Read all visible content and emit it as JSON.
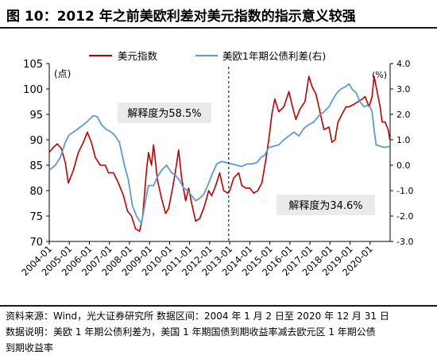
{
  "figure_title": "图 10：2012 年之前美欧利差对美元指数的指示意义较强",
  "notes": {
    "source": "资料来源：Wind，光大证券研究所  数据区间：2004 年 1 月 2 日至 2020 年 12 月 31 日",
    "desc_line1": "数据说明：美欧 1 年期公债利差为，美国 1 年期国债到期收益率减去欧元区 1 年期公债",
    "desc_line2": "到期收益率"
  },
  "colors": {
    "usd_index": "#c00000",
    "spread": "#5b9bd5",
    "annotation_box": "#eaeaea",
    "divider": "#000000"
  },
  "chart_data": {
    "type": "line",
    "title": "",
    "left_axis_unit": "(点)",
    "right_axis_unit": "(%)",
    "ylim_left": [
      70,
      105
    ],
    "yticks_left": [
      70,
      75,
      80,
      85,
      90,
      95,
      100,
      105
    ],
    "ylim_right": [
      -3.0,
      4.0
    ],
    "yticks_right": [
      "-3.0",
      "-2.0",
      "-1.0",
      "0.0",
      "1.0",
      "2.0",
      "3.0",
      "4.0"
    ],
    "x_tick_labels": [
      "2004-01",
      "2005-01",
      "2006-01",
      "2007-01",
      "2008-01",
      "2009-01",
      "2010-01",
      "2011-01",
      "2012-01",
      "2013-01",
      "2014-01",
      "2015-01",
      "2016-01",
      "2017-01",
      "2018-01",
      "2019-01",
      "2020-01"
    ],
    "x_range": [
      2004.0,
      2021.0
    ],
    "divider_x": 2012.95,
    "annotations": [
      {
        "text": "解释度为58.5%"
      },
      {
        "text": "解释度为34.6%"
      }
    ],
    "legend_position": "top",
    "series": [
      {
        "name": "美元指数",
        "axis": "left",
        "points": [
          [
            2004.0,
            87.5
          ],
          [
            2004.2,
            88.5
          ],
          [
            2004.4,
            89.2
          ],
          [
            2004.6,
            88.3
          ],
          [
            2004.8,
            85.5
          ],
          [
            2004.95,
            81.5
          ],
          [
            2005.2,
            84.0
          ],
          [
            2005.45,
            87.5
          ],
          [
            2005.7,
            89.5
          ],
          [
            2005.9,
            91.5
          ],
          [
            2006.1,
            89.5
          ],
          [
            2006.3,
            86.5
          ],
          [
            2006.55,
            85.0
          ],
          [
            2006.8,
            85.0
          ],
          [
            2006.95,
            83.5
          ],
          [
            2007.2,
            83.5
          ],
          [
            2007.45,
            81.5
          ],
          [
            2007.7,
            79.0
          ],
          [
            2007.9,
            76.0
          ],
          [
            2008.1,
            75.0
          ],
          [
            2008.3,
            72.5
          ],
          [
            2008.5,
            72.0
          ],
          [
            2008.65,
            74.5
          ],
          [
            2008.85,
            84.0
          ],
          [
            2008.95,
            87.5
          ],
          [
            2009.1,
            85.0
          ],
          [
            2009.2,
            89.0
          ],
          [
            2009.4,
            82.0
          ],
          [
            2009.6,
            78.5
          ],
          [
            2009.8,
            75.5
          ],
          [
            2009.95,
            76.5
          ],
          [
            2010.15,
            80.5
          ],
          [
            2010.3,
            84.0
          ],
          [
            2010.45,
            88.0
          ],
          [
            2010.6,
            82.5
          ],
          [
            2010.8,
            78.0
          ],
          [
            2010.95,
            80.5
          ],
          [
            2011.1,
            77.5
          ],
          [
            2011.3,
            74.0
          ],
          [
            2011.5,
            74.5
          ],
          [
            2011.7,
            76.5
          ],
          [
            2011.85,
            78.5
          ],
          [
            2011.95,
            80.0
          ],
          [
            2012.1,
            79.0
          ],
          [
            2012.3,
            81.0
          ],
          [
            2012.5,
            83.5
          ],
          [
            2012.7,
            80.0
          ],
          [
            2012.9,
            79.5
          ],
          [
            2013.0,
            80.0
          ],
          [
            2013.2,
            82.5
          ],
          [
            2013.45,
            83.5
          ],
          [
            2013.6,
            81.0
          ],
          [
            2013.8,
            80.5
          ],
          [
            2014.0,
            80.5
          ],
          [
            2014.2,
            79.5
          ],
          [
            2014.4,
            80.0
          ],
          [
            2014.6,
            81.5
          ],
          [
            2014.8,
            86.0
          ],
          [
            2014.95,
            90.0
          ],
          [
            2015.1,
            95.0
          ],
          [
            2015.25,
            98.0
          ],
          [
            2015.45,
            95.5
          ],
          [
            2015.7,
            96.5
          ],
          [
            2015.95,
            99.5
          ],
          [
            2016.1,
            97.0
          ],
          [
            2016.3,
            94.0
          ],
          [
            2016.5,
            96.0
          ],
          [
            2016.75,
            97.5
          ],
          [
            2016.95,
            102.5
          ],
          [
            2017.1,
            100.5
          ],
          [
            2017.3,
            99.0
          ],
          [
            2017.5,
            95.5
          ],
          [
            2017.7,
            92.0
          ],
          [
            2017.95,
            92.5
          ],
          [
            2018.1,
            89.5
          ],
          [
            2018.25,
            90.0
          ],
          [
            2018.4,
            93.5
          ],
          [
            2018.6,
            95.0
          ],
          [
            2018.8,
            96.5
          ],
          [
            2018.95,
            96.5
          ],
          [
            2019.2,
            97.0
          ],
          [
            2019.4,
            97.5
          ],
          [
            2019.6,
            98.0
          ],
          [
            2019.75,
            98.5
          ],
          [
            2019.95,
            96.5
          ],
          [
            2020.1,
            98.5
          ],
          [
            2020.2,
            102.5
          ],
          [
            2020.35,
            99.5
          ],
          [
            2020.5,
            96.5
          ],
          [
            2020.6,
            93.5
          ],
          [
            2020.75,
            93.5
          ],
          [
            2020.9,
            92.0
          ],
          [
            2020.99,
            90.0
          ]
        ]
      },
      {
        "name": "美欧1年期公债利差(右)",
        "axis": "right",
        "points": [
          [
            2004.0,
            -0.2
          ],
          [
            2004.3,
            0.0
          ],
          [
            2004.55,
            0.3
          ],
          [
            2004.8,
            0.9
          ],
          [
            2005.0,
            1.2
          ],
          [
            2005.3,
            1.35
          ],
          [
            2005.55,
            1.5
          ],
          [
            2005.8,
            1.65
          ],
          [
            2006.0,
            1.8
          ],
          [
            2006.2,
            1.95
          ],
          [
            2006.4,
            1.9
          ],
          [
            2006.6,
            1.6
          ],
          [
            2006.85,
            1.4
          ],
          [
            2007.0,
            1.35
          ],
          [
            2007.25,
            1.2
          ],
          [
            2007.5,
            0.9
          ],
          [
            2007.75,
            0.0
          ],
          [
            2007.95,
            -0.6
          ],
          [
            2008.15,
            -1.6
          ],
          [
            2008.35,
            -2.0
          ],
          [
            2008.6,
            -2.3
          ],
          [
            2008.8,
            -1.4
          ],
          [
            2008.95,
            -0.8
          ],
          [
            2009.2,
            -0.8
          ],
          [
            2009.4,
            -0.45
          ],
          [
            2009.6,
            -0.2
          ],
          [
            2009.85,
            0.0
          ],
          [
            2010.1,
            -0.3
          ],
          [
            2010.3,
            -0.4
          ],
          [
            2010.5,
            -0.6
          ],
          [
            2010.7,
            -0.9
          ],
          [
            2010.9,
            -1.0
          ],
          [
            2011.1,
            -1.2
          ],
          [
            2011.3,
            -1.4
          ],
          [
            2011.5,
            -1.3
          ],
          [
            2011.7,
            -1.15
          ],
          [
            2011.9,
            -0.8
          ],
          [
            2012.1,
            -0.4
          ],
          [
            2012.35,
            0.05
          ],
          [
            2012.6,
            0.15
          ],
          [
            2012.85,
            0.1
          ],
          [
            2013.1,
            0.05
          ],
          [
            2013.35,
            0.0
          ],
          [
            2013.6,
            -0.05
          ],
          [
            2013.85,
            0.05
          ],
          [
            2014.1,
            0.05
          ],
          [
            2014.35,
            0.1
          ],
          [
            2014.55,
            0.3
          ],
          [
            2014.75,
            0.4
          ],
          [
            2014.95,
            0.7
          ],
          [
            2015.2,
            0.75
          ],
          [
            2015.45,
            0.8
          ],
          [
            2015.7,
            1.0
          ],
          [
            2015.95,
            1.15
          ],
          [
            2016.2,
            1.3
          ],
          [
            2016.45,
            1.15
          ],
          [
            2016.7,
            1.45
          ],
          [
            2016.95,
            1.6
          ],
          [
            2017.2,
            1.7
          ],
          [
            2017.45,
            1.95
          ],
          [
            2017.7,
            2.1
          ],
          [
            2017.95,
            2.3
          ],
          [
            2018.15,
            2.6
          ],
          [
            2018.35,
            2.85
          ],
          [
            2018.55,
            3.0
          ],
          [
            2018.8,
            3.1
          ],
          [
            2018.95,
            3.2
          ],
          [
            2019.1,
            3.0
          ],
          [
            2019.3,
            2.85
          ],
          [
            2019.5,
            2.5
          ],
          [
            2019.7,
            2.3
          ],
          [
            2019.85,
            2.35
          ],
          [
            2020.0,
            2.3
          ],
          [
            2020.1,
            2.1
          ],
          [
            2020.2,
            1.4
          ],
          [
            2020.3,
            0.8
          ],
          [
            2020.5,
            0.75
          ],
          [
            2020.7,
            0.7
          ],
          [
            2020.85,
            0.72
          ],
          [
            2020.99,
            0.75
          ]
        ]
      }
    ]
  }
}
